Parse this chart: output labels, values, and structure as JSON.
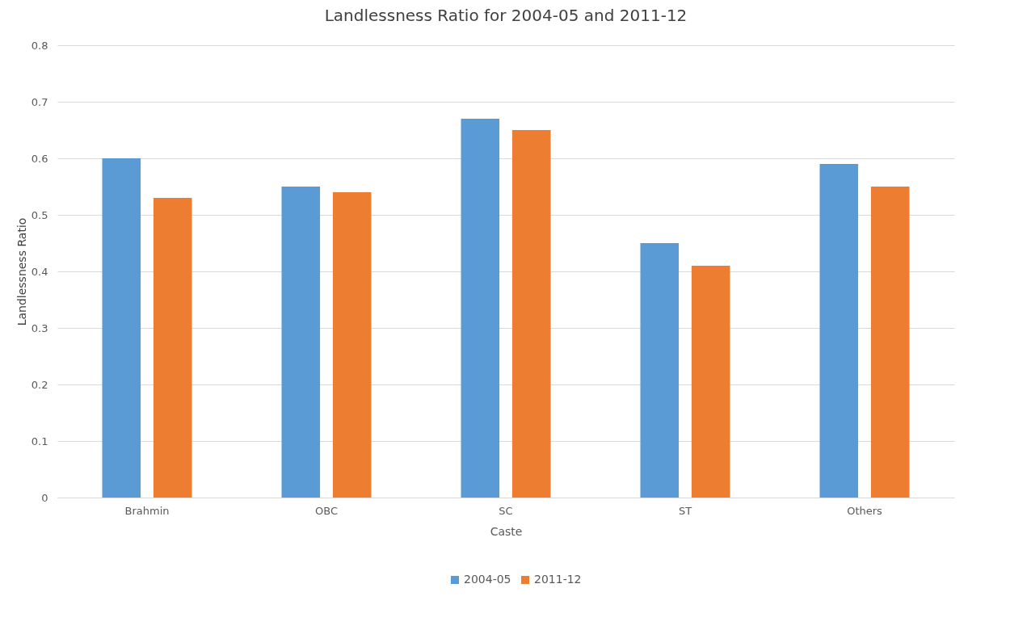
{
  "chart_data": {
    "type": "bar",
    "title": "Landlessness  Ratio for 2004-05 and 2011-12",
    "xlabel": "Caste",
    "ylabel": "Landlessness Ratio",
    "categories": [
      "Brahmin",
      "OBC",
      "SC",
      "ST",
      "Others"
    ],
    "series": [
      {
        "name": "2004-05",
        "color": "#5b9bd5",
        "values": [
          0.6,
          0.55,
          0.67,
          0.45,
          0.59
        ]
      },
      {
        "name": "2011-12",
        "color": "#ed7d31",
        "values": [
          0.53,
          0.54,
          0.65,
          0.41,
          0.55
        ]
      }
    ],
    "ylim": [
      0,
      0.8
    ],
    "yticks": [
      0,
      0.1,
      0.2,
      0.3,
      0.4,
      0.5,
      0.6,
      0.7,
      0.8
    ],
    "grid": "y",
    "legend": "bottom"
  }
}
